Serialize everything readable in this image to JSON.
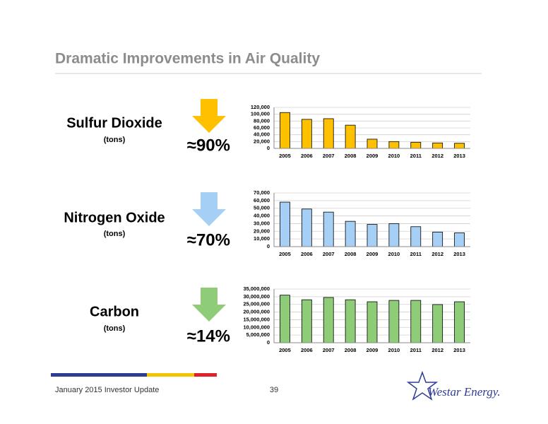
{
  "slide_title": "Dramatic Improvements in Air Quality",
  "footer": {
    "text": "January 2015 Investor Update",
    "page": "39",
    "logo": "Westar Energy."
  },
  "chart_data": [
    {
      "type": "bar",
      "title": "Sulfur Dioxide",
      "subtitle": "(tons)",
      "annotation": "≈90%",
      "color": "#ffc000",
      "categories": [
        "2005",
        "2006",
        "2007",
        "2008",
        "2009",
        "2010",
        "2011",
        "2012",
        "2013"
      ],
      "values": [
        105000,
        85000,
        87000,
        68000,
        27000,
        20000,
        18000,
        16000,
        15000
      ],
      "ylim": [
        0,
        120000
      ],
      "yticks": [
        0,
        {
          "value": 20000,
          "label": "20,000"
        },
        {
          "value": 40000,
          "label": "40,000"
        },
        {
          "value": 60000,
          "label": "60,000"
        },
        {
          "value": 80000,
          "label": "80,000"
        },
        {
          "value": 100000,
          "label": "100,000"
        },
        {
          "value": 120000,
          "label": "120,000"
        }
      ],
      "grid": true
    },
    {
      "type": "bar",
      "title": "Nitrogen Oxide",
      "subtitle": "(tons)",
      "annotation": "≈70%",
      "color": "#a6cff5",
      "categories": [
        "2005",
        "2006",
        "2007",
        "2008",
        "2009",
        "2010",
        "2011",
        "2012",
        "2013"
      ],
      "values": [
        58000,
        49000,
        45000,
        33000,
        29000,
        30000,
        26000,
        19000,
        18000
      ],
      "ylim": [
        0,
        70000
      ],
      "yticks": [
        0,
        {
          "value": 10000,
          "label": "10,000"
        },
        {
          "value": 20000,
          "label": "20,000"
        },
        {
          "value": 30000,
          "label": "30,000"
        },
        {
          "value": 40000,
          "label": "40,000"
        },
        {
          "value": 50000,
          "label": "50,000"
        },
        {
          "value": 60000,
          "label": "60,000"
        },
        {
          "value": 70000,
          "label": "70,000"
        }
      ],
      "grid": true
    },
    {
      "type": "bar",
      "title": "Carbon",
      "subtitle": "(tons)",
      "annotation": "≈14%",
      "color": "#8fcc78",
      "categories": [
        "2005",
        "2006",
        "2007",
        "2008",
        "2009",
        "2010",
        "2011",
        "2012",
        "2013"
      ],
      "values": [
        31000000,
        28000000,
        29500000,
        28000000,
        26700000,
        27600000,
        27600000,
        24900000,
        26700000
      ],
      "ylim": [
        0,
        35000000
      ],
      "yticks": [
        0,
        {
          "value": 5000000,
          "label": "5,000,000"
        },
        {
          "value": 10000000,
          "label": "10,000,000"
        },
        {
          "value": 15000000,
          "label": "15,000,000"
        },
        {
          "value": 20000000,
          "label": "20,000,000"
        },
        {
          "value": 25000000,
          "label": "25,000,000"
        },
        {
          "value": 30000000,
          "label": "30,000,000"
        },
        {
          "value": 35000000,
          "label": "35,000,000"
        }
      ],
      "grid": true
    }
  ]
}
